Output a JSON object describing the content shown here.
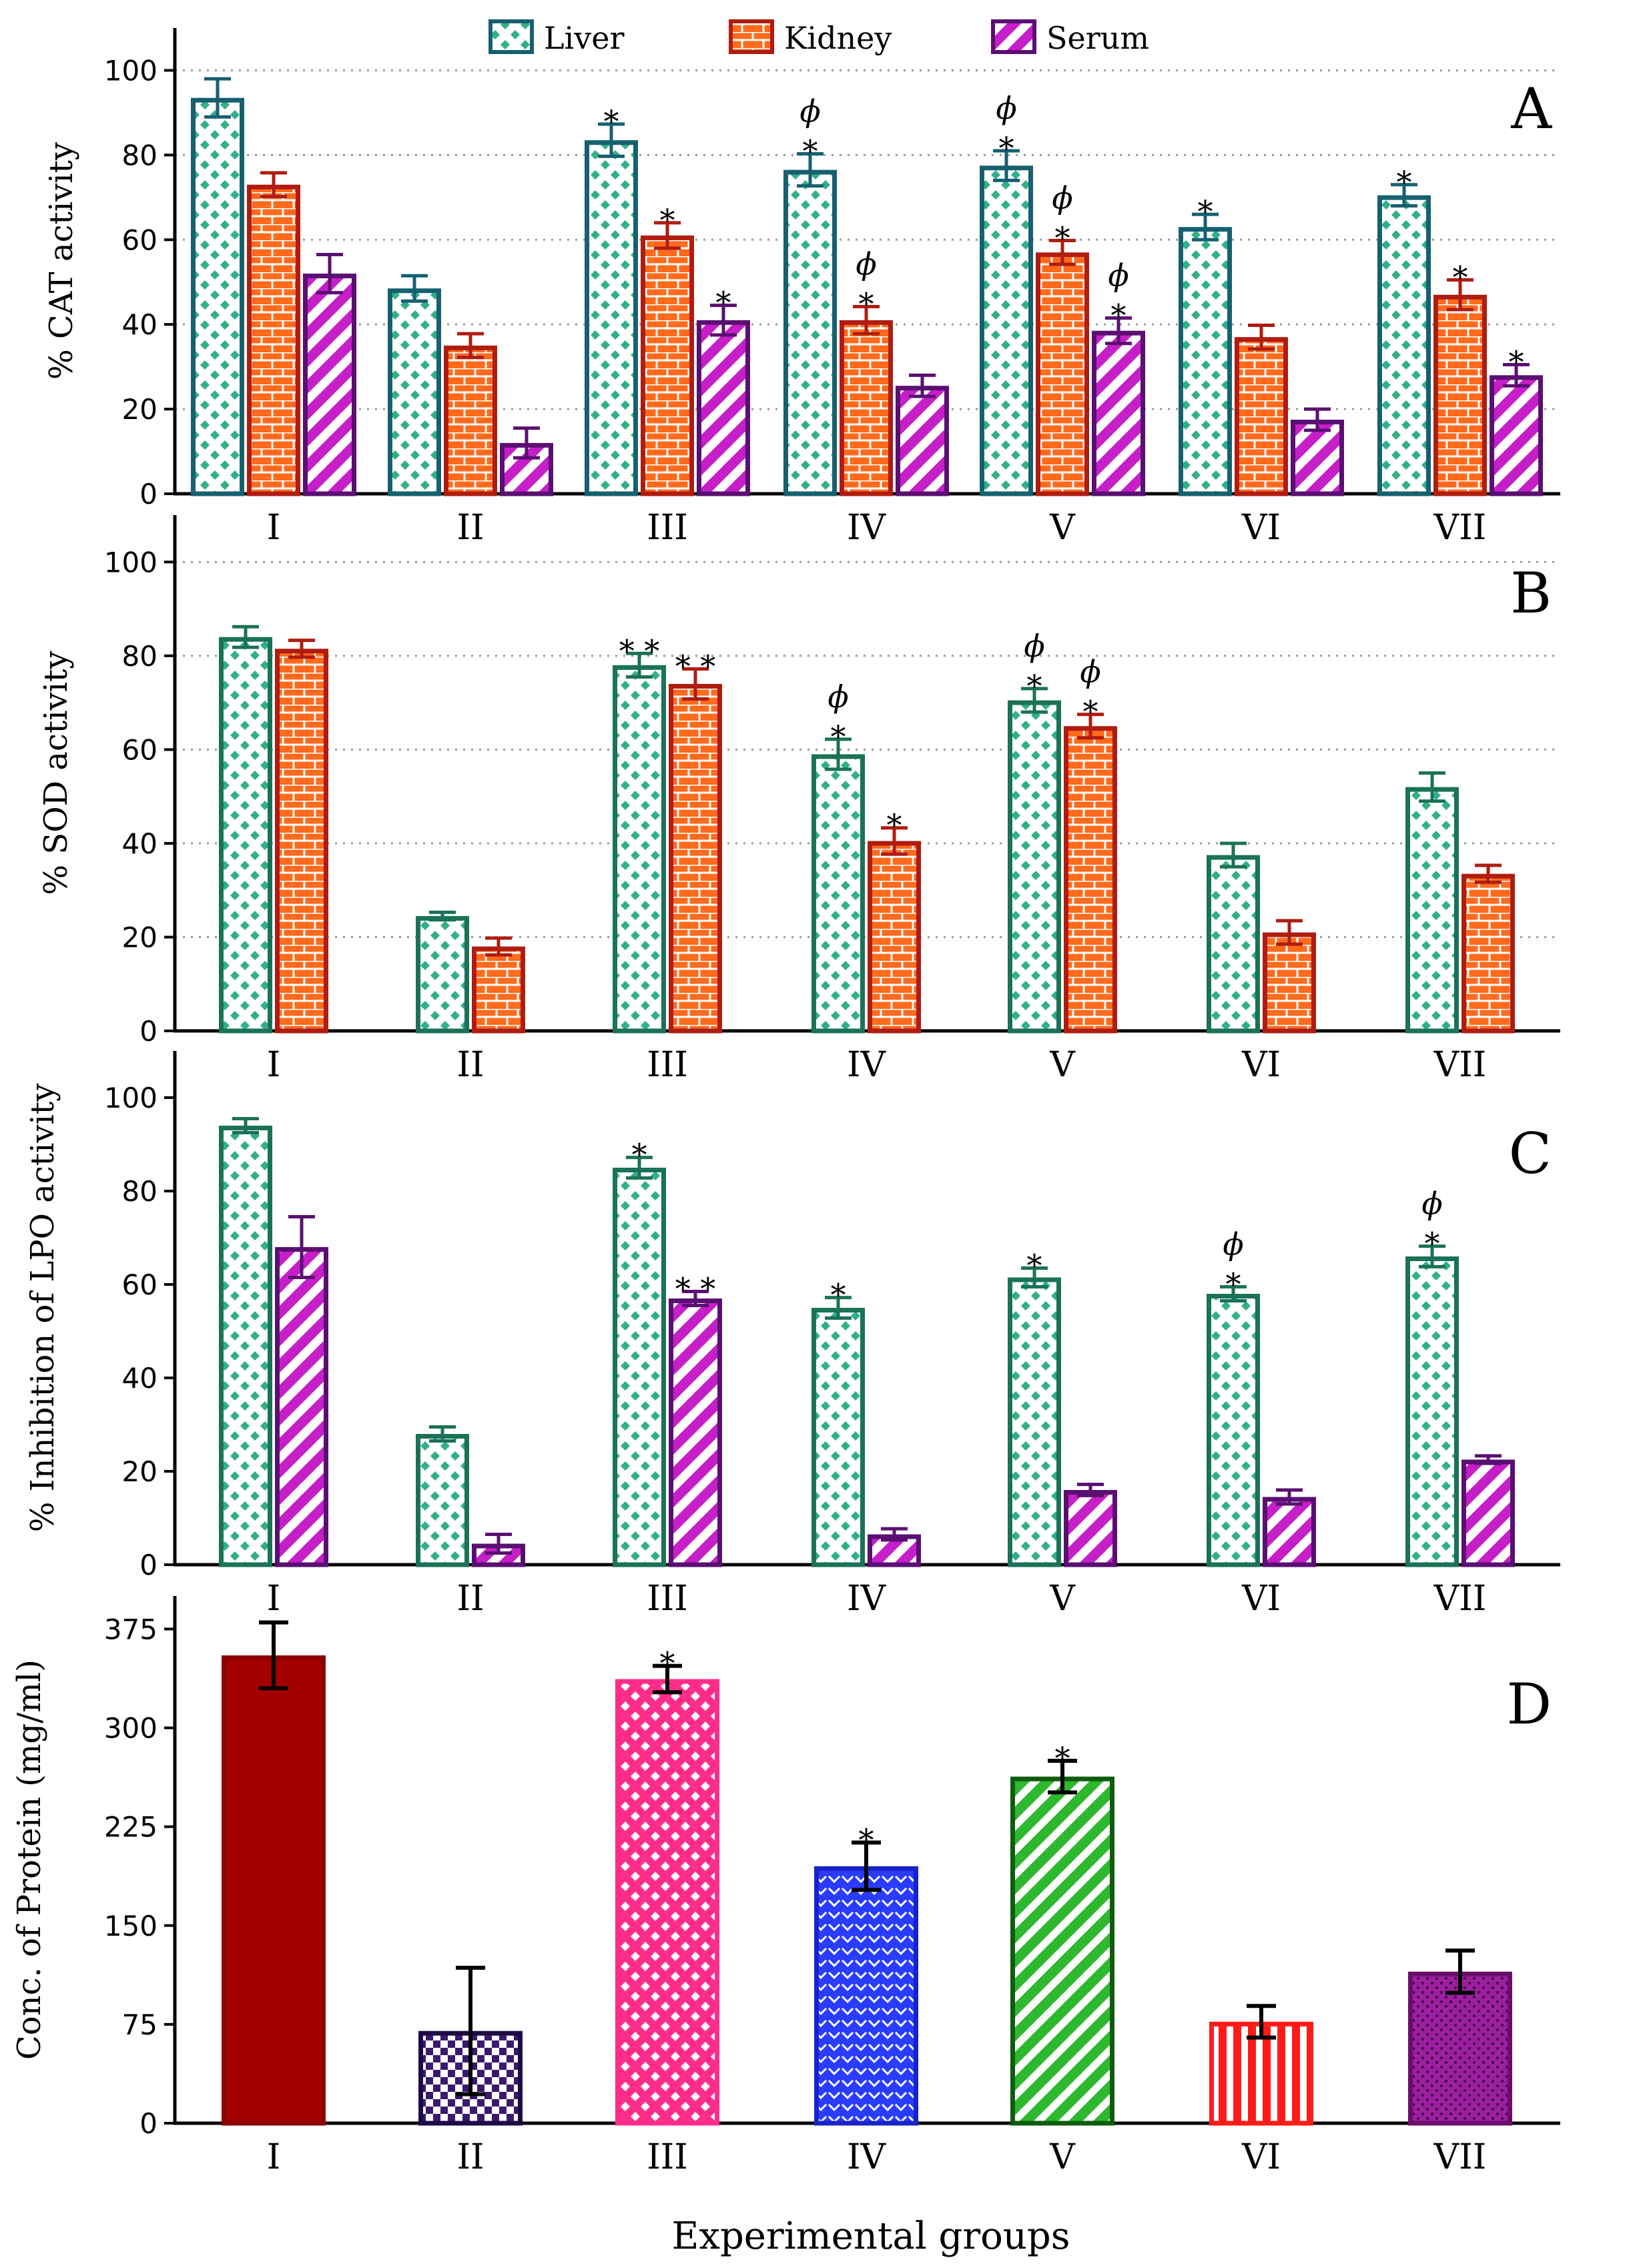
{
  "colors": {
    "liver": "#1a7258",
    "liver_fill": "#30b08a",
    "kidney": "#b01c10",
    "kidney_fill": "#ff6a1c",
    "serum": "#5a0f72",
    "serum_fill": "#c61fc8",
    "cat_liver_border": "#166070"
  },
  "legend": [
    {
      "key": "liver",
      "label": "Liver"
    },
    {
      "key": "kidney",
      "label": "Kidney"
    },
    {
      "key": "serum",
      "label": "Serum"
    }
  ],
  "xlabel": "Experimental groups",
  "chart_data": [
    {
      "panel": "A",
      "type": "bar",
      "ylabel": "% CAT activity",
      "ylim": [
        0,
        110
      ],
      "yticks": [
        0,
        20,
        40,
        60,
        80,
        100
      ],
      "grid": true,
      "categories": [
        "I",
        "II",
        "III",
        "IV",
        "V",
        "VI",
        "VII"
      ],
      "series": [
        {
          "name": "Liver",
          "key": "liver",
          "values": [
            93.5,
            48.5,
            83.5,
            76.5,
            77.5,
            63,
            70.5
          ],
          "errors": [
            4.5,
            3,
            3.8,
            3.8,
            3.5,
            3,
            2.5
          ],
          "annotations": [
            "",
            "",
            "*",
            "ϕ *",
            "ϕ *",
            "*",
            "*"
          ]
        },
        {
          "name": "Kidney",
          "key": "kidney",
          "values": [
            73,
            35,
            61,
            41,
            57,
            37,
            47
          ],
          "errors": [
            2.8,
            2.8,
            3,
            3.2,
            2.8,
            2.8,
            3.5
          ],
          "annotations": [
            "",
            "",
            "*",
            "ϕ *",
            "ϕ *",
            "",
            "*"
          ]
        },
        {
          "name": "Serum",
          "key": "serum",
          "values": [
            52,
            12,
            41,
            25.5,
            38.5,
            17.5,
            28
          ],
          "errors": [
            4.5,
            3.5,
            3.5,
            2.5,
            3,
            2.5,
            2.5
          ],
          "annotations": [
            "",
            "",
            "*",
            "",
            "ϕ *",
            "",
            "*"
          ]
        }
      ]
    },
    {
      "panel": "B",
      "type": "bar",
      "ylabel": "% SOD activity",
      "ylim": [
        0,
        110
      ],
      "yticks": [
        0,
        20,
        40,
        60,
        80,
        100
      ],
      "grid": true,
      "categories": [
        "I",
        "II",
        "III",
        "IV",
        "V",
        "VI",
        "VII"
      ],
      "series": [
        {
          "name": "Liver",
          "key": "liver",
          "values": [
            84,
            24.5,
            78,
            59,
            70.5,
            37.5,
            52
          ],
          "errors": [
            2.2,
            0.8,
            2.5,
            3.2,
            2.5,
            2.5,
            3
          ],
          "annotations": [
            "",
            "",
            "* *",
            "ϕ *",
            "ϕ *",
            "",
            ""
          ]
        },
        {
          "name": "Kidney",
          "key": "kidney",
          "values": [
            81.5,
            18,
            74,
            40.5,
            65,
            21,
            33.5
          ],
          "errors": [
            1.8,
            1.8,
            3.2,
            2.8,
            2.5,
            2.5,
            1.8
          ],
          "annotations": [
            "",
            "",
            "* *",
            "*",
            "ϕ *",
            "",
            ""
          ]
        }
      ]
    },
    {
      "panel": "C",
      "type": "bar",
      "ylabel": "% Inhibition of LPO activity",
      "ylim": [
        0,
        110
      ],
      "yticks": [
        0,
        20,
        40,
        60,
        80,
        100
      ],
      "grid": false,
      "categories": [
        "I",
        "II",
        "III",
        "IV",
        "V",
        "VI",
        "VII"
      ],
      "series": [
        {
          "name": "Liver",
          "key": "liver",
          "values": [
            94,
            28,
            85,
            55,
            61.5,
            58,
            66
          ],
          "errors": [
            1.5,
            1.5,
            2.2,
            2.2,
            2,
            1.5,
            2.2
          ],
          "annotations": [
            "",
            "",
            "*",
            "*",
            "*",
            "ϕ *",
            "ϕ *"
          ]
        },
        {
          "name": "Serum",
          "key": "serum",
          "values": [
            68,
            4.5,
            57,
            6.5,
            16,
            14.5,
            22.5
          ],
          "errors": [
            6.5,
            2,
            1.5,
            1.2,
            1.2,
            1.5,
            0.8
          ],
          "annotations": [
            "",
            "",
            "* *",
            "",
            "",
            "",
            ""
          ]
        }
      ]
    },
    {
      "panel": "D",
      "type": "bar",
      "ylabel": "Conc. of Protein (mg/ml)",
      "ylim": [
        0,
        400
      ],
      "yticks": [
        0,
        75,
        150,
        225,
        300,
        375
      ],
      "grid": false,
      "categories": [
        "I",
        "II",
        "III",
        "IV",
        "V",
        "VI",
        "VII"
      ],
      "series": [
        {
          "name": "Protein",
          "values": [
            355,
            70,
            337,
            195,
            263,
            77,
            115
          ],
          "errors": [
            25,
            48,
            10,
            18,
            12,
            12,
            16
          ],
          "annotations": [
            "",
            "",
            "*",
            "*",
            "*",
            "",
            ""
          ],
          "bar_colors": [
            {
              "edge": "#8c0000",
              "fill": "#a30000",
              "pattern": "solid"
            },
            {
              "edge": "#1e0a46",
              "fill": "#3a1a6e",
              "pattern": "checker"
            },
            {
              "edge": "#ff2c8a",
              "fill": "#ff2c8a",
              "pattern": "diamond"
            },
            {
              "edge": "#1a22c8",
              "fill": "#2a3cff",
              "pattern": "chevron"
            },
            {
              "edge": "#0e5c0e",
              "fill": "#2eb82e",
              "pattern": "diagonal"
            },
            {
              "edge": "#ff1a1a",
              "fill": "#ff1a1a",
              "pattern": "vertical"
            },
            {
              "edge": "#6a0e6a",
              "fill": "#9c1fa0",
              "pattern": "dots"
            }
          ]
        }
      ]
    }
  ]
}
